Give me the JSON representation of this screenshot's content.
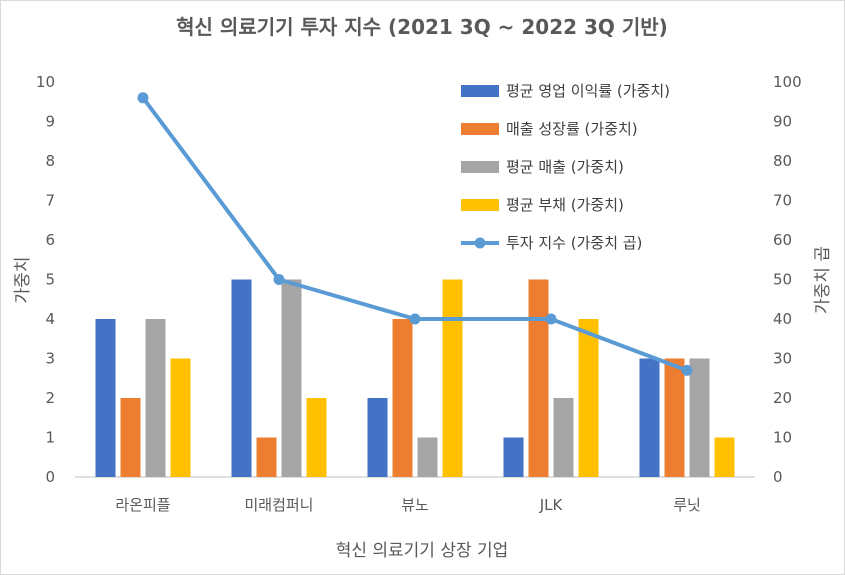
{
  "chart_data": {
    "type": "bar",
    "title": "혁신 의료기기 투자 지수 (2021 3Q ~ 2022 3Q 기반)",
    "xlabel": "혁신 의료기기 상장 기업",
    "ylabel": "가중치",
    "y2label": "가중치 곱",
    "categories": [
      "라온피플",
      "미래컴퍼니",
      "뷰노",
      "JLK",
      "루닛"
    ],
    "ylim": [
      0,
      10
    ],
    "y2lim": [
      0,
      100
    ],
    "yticks": [
      "0",
      "1",
      "2",
      "3",
      "4",
      "5",
      "6",
      "7",
      "8",
      "9",
      "10"
    ],
    "y2ticks": [
      "0",
      "10",
      "20",
      "30",
      "40",
      "50",
      "60",
      "70",
      "80",
      "90",
      "100"
    ],
    "series": [
      {
        "name": "평균 영업 이익률 (가중치)",
        "kind": "bar",
        "axis": "left",
        "color": "#4472c4",
        "values": [
          4,
          5,
          2,
          1,
          3
        ]
      },
      {
        "name": "매출 성장률 (가중치)",
        "kind": "bar",
        "axis": "left",
        "color": "#ed7d31",
        "values": [
          2,
          1,
          4,
          5,
          3
        ]
      },
      {
        "name": "평균 매출 (가중치)",
        "kind": "bar",
        "axis": "left",
        "color": "#a5a5a5",
        "values": [
          4,
          5,
          1,
          2,
          3
        ]
      },
      {
        "name": "평균 부채 (가중치)",
        "kind": "bar",
        "axis": "left",
        "color": "#ffc000",
        "values": [
          3,
          2,
          5,
          4,
          1
        ]
      },
      {
        "name": "투자 지수 (가중치 곱)",
        "kind": "line",
        "axis": "right",
        "color": "#5b9bd5",
        "values": [
          96,
          50,
          40,
          40,
          27
        ]
      }
    ],
    "legend": "top-right, inside plot"
  }
}
